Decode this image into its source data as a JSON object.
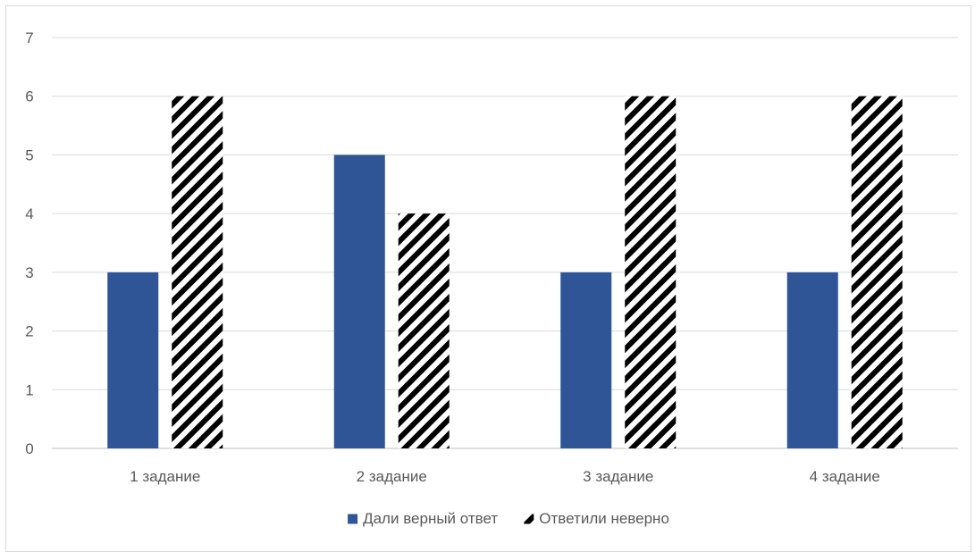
{
  "chart_data": {
    "type": "bar",
    "categories": [
      "1 задание",
      "2 задание",
      "3 задание",
      "4 задание"
    ],
    "series": [
      {
        "name": "Дали верный ответ",
        "values": [
          3,
          5,
          3,
          3
        ],
        "color": "#2f5597",
        "pattern": "solid"
      },
      {
        "name": "Ответили неверно",
        "values": [
          6,
          4,
          6,
          6
        ],
        "color": "#000000",
        "pattern": "diagonal-stripes"
      }
    ],
    "ylim": [
      0,
      7
    ],
    "yticks": [
      0,
      1,
      2,
      3,
      4,
      5,
      6,
      7
    ],
    "grid": true,
    "legend": "bottom",
    "title": "",
    "xlabel": "",
    "ylabel": ""
  }
}
